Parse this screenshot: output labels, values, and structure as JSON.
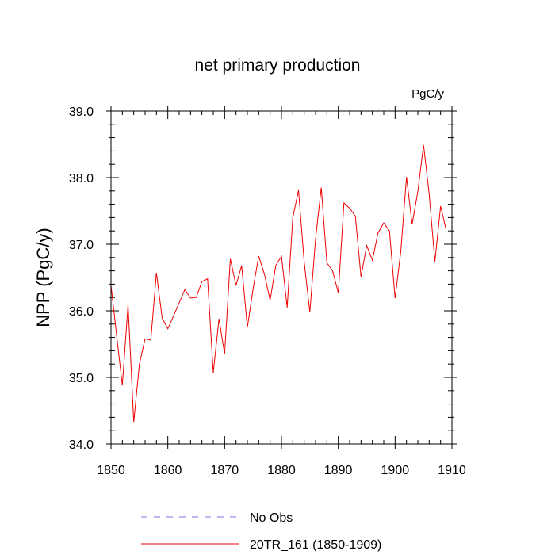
{
  "chart_data": {
    "type": "line",
    "title": "net primary production",
    "units": "PgC/y",
    "ylabel": "NPP  (PgC/y)",
    "xlabel": "",
    "xlim": [
      1850,
      1910
    ],
    "ylim": [
      34.0,
      39.0
    ],
    "x_ticks": [
      1850,
      1860,
      1870,
      1880,
      1890,
      1900,
      1910
    ],
    "y_ticks": [
      "34.0",
      "35.0",
      "36.0",
      "37.0",
      "38.0",
      "39.0"
    ],
    "x_minor_step": 2,
    "y_minor_step": 0.2,
    "series": [
      {
        "name": "No Obs",
        "color": "#7777ee",
        "dash": true,
        "x": [],
        "values": []
      },
      {
        "name": "20TR_161 (1850-1909)",
        "color": "#ee0000",
        "dash": false,
        "x": [
          1850,
          1851,
          1852,
          1853,
          1854,
          1855,
          1856,
          1857,
          1858,
          1859,
          1860,
          1861,
          1862,
          1863,
          1864,
          1865,
          1866,
          1867,
          1868,
          1869,
          1870,
          1871,
          1872,
          1873,
          1874,
          1875,
          1876,
          1877,
          1878,
          1879,
          1880,
          1881,
          1882,
          1883,
          1884,
          1885,
          1886,
          1887,
          1888,
          1889,
          1890,
          1891,
          1892,
          1893,
          1894,
          1895,
          1896,
          1897,
          1898,
          1899,
          1900,
          1901,
          1902,
          1903,
          1904,
          1905,
          1906,
          1907,
          1908,
          1909
        ],
        "values": [
          36.38,
          35.62,
          34.88,
          36.09,
          34.33,
          35.2,
          35.58,
          35.56,
          36.57,
          35.89,
          35.73,
          35.92,
          36.12,
          36.32,
          36.19,
          36.2,
          36.44,
          36.48,
          35.07,
          35.88,
          35.35,
          36.78,
          36.38,
          36.68,
          35.75,
          36.33,
          36.82,
          36.55,
          36.16,
          36.68,
          36.82,
          36.05,
          37.4,
          37.81,
          36.73,
          35.98,
          37.08,
          37.85,
          36.72,
          36.6,
          36.27,
          37.62,
          37.54,
          37.42,
          36.51,
          36.98,
          36.76,
          37.17,
          37.32,
          37.2,
          36.19,
          36.89,
          38.01,
          37.3,
          37.79,
          38.49,
          37.75,
          36.74,
          37.57,
          37.21
        ]
      }
    ]
  }
}
